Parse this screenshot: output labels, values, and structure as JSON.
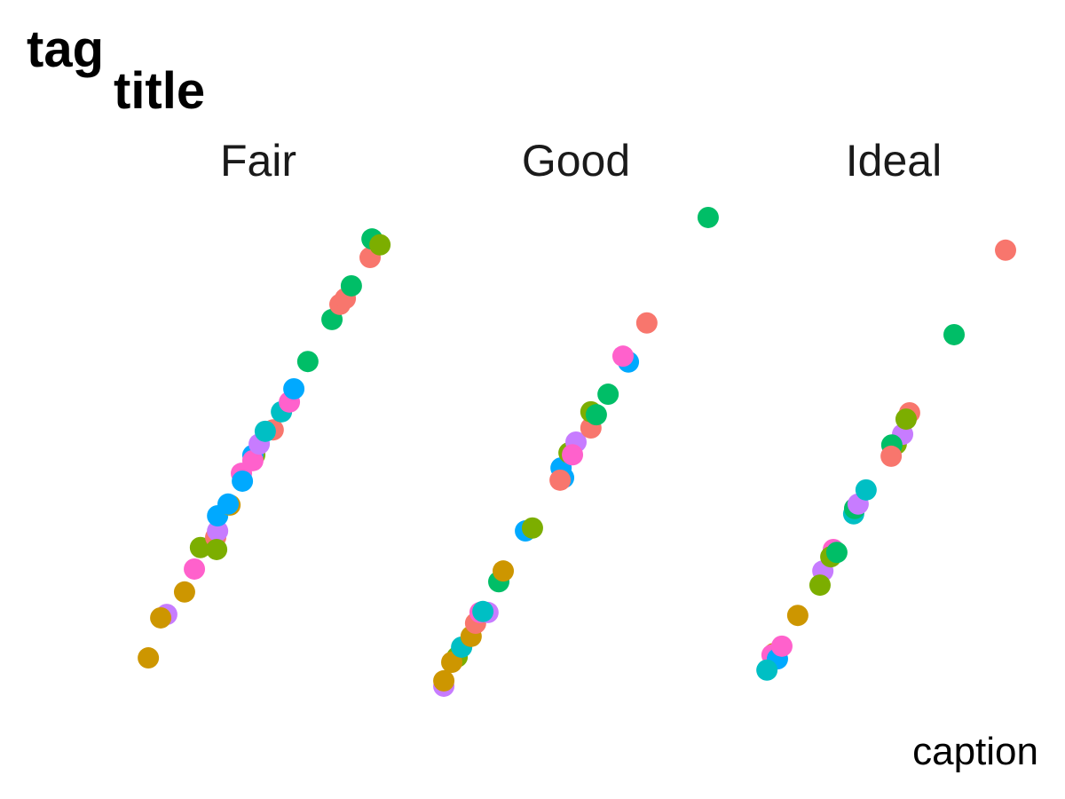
{
  "tag": "tag",
  "title": "title",
  "caption": "caption",
  "chart_data": {
    "type": "scatter",
    "title": "title",
    "tag": "tag",
    "caption": "caption",
    "xlabel": "",
    "ylabel": "",
    "axes_visible": false,
    "grid": false,
    "legend": "none",
    "xlim": [
      0,
      100
    ],
    "ylim": [
      0,
      100
    ],
    "palette": [
      "#F8766D",
      "#CD9600",
      "#7CAE00",
      "#00BE67",
      "#00BFC4",
      "#00A9FF",
      "#C77CFF",
      "#FF61CC"
    ],
    "facets": [
      {
        "label": "Fair",
        "points": [
          [
            15.4,
            8.9,
            1
          ],
          [
            21.2,
            17.8,
            6
          ],
          [
            19.3,
            17.1,
            1
          ],
          [
            26.8,
            22.4,
            1
          ],
          [
            29.9,
            27.1,
            7
          ],
          [
            31.8,
            31.5,
            2
          ],
          [
            36.6,
            33.6,
            0
          ],
          [
            37.2,
            34.9,
            6
          ],
          [
            36.9,
            31.1,
            2
          ],
          [
            37.2,
            38.0,
            5
          ],
          [
            41.1,
            40.2,
            1
          ],
          [
            40.5,
            40.4,
            5
          ],
          [
            44.7,
            46.7,
            7
          ],
          [
            45.0,
            45.1,
            5
          ],
          [
            48.9,
            50.5,
            2
          ],
          [
            48.3,
            50.4,
            5
          ],
          [
            48.3,
            49.3,
            7
          ],
          [
            50.3,
            52.7,
            6
          ],
          [
            54.7,
            55.6,
            0
          ],
          [
            52.2,
            55.3,
            4
          ],
          [
            57.3,
            59.3,
            4
          ],
          [
            59.8,
            61.3,
            7
          ],
          [
            61.2,
            64.0,
            5
          ],
          [
            65.6,
            69.6,
            3
          ],
          [
            73.2,
            78.2,
            3
          ],
          [
            75.7,
            81.3,
            0
          ],
          [
            77.4,
            82.5,
            0
          ],
          [
            79.3,
            85.1,
            3
          ],
          [
            85.2,
            90.9,
            0
          ],
          [
            85.8,
            94.7,
            3
          ],
          [
            88.3,
            93.5,
            2
          ]
        ]
      },
      {
        "label": "Good",
        "points": [
          [
            8.4,
            3.1,
            6
          ],
          [
            8.4,
            4.2,
            1
          ],
          [
            12.6,
            9.1,
            2
          ],
          [
            10.9,
            8.0,
            1
          ],
          [
            14.0,
            11.1,
            4
          ],
          [
            17.0,
            13.3,
            1
          ],
          [
            18.4,
            16.0,
            0
          ],
          [
            22.3,
            18.2,
            6
          ],
          [
            19.8,
            18.2,
            7
          ],
          [
            20.7,
            18.4,
            4
          ],
          [
            25.7,
            24.5,
            3
          ],
          [
            27.1,
            26.7,
            1
          ],
          [
            34.1,
            34.9,
            5
          ],
          [
            36.3,
            35.5,
            2
          ],
          [
            45.3,
            47.8,
            5
          ],
          [
            46.1,
            45.8,
            5
          ],
          [
            45.0,
            45.3,
            0
          ],
          [
            47.8,
            50.9,
            2
          ],
          [
            50.0,
            53.1,
            6
          ],
          [
            48.9,
            50.5,
            7
          ],
          [
            54.7,
            56.0,
            0
          ],
          [
            54.7,
            59.3,
            2
          ],
          [
            56.4,
            58.7,
            3
          ],
          [
            60.1,
            62.9,
            3
          ],
          [
            66.5,
            69.5,
            5
          ],
          [
            64.8,
            70.7,
            7
          ],
          [
            72.3,
            77.5,
            0
          ],
          [
            91.6,
            99.1,
            3
          ]
        ]
      },
      {
        "label": "Ideal",
        "points": [
          [
            12.3,
            9.8,
            1
          ],
          [
            11.7,
            9.5,
            7
          ],
          [
            13.4,
            8.7,
            5
          ],
          [
            10.1,
            6.4,
            4
          ],
          [
            14.8,
            11.3,
            7
          ],
          [
            19.8,
            17.6,
            1
          ],
          [
            27.7,
            26.7,
            6
          ],
          [
            26.8,
            23.8,
            2
          ],
          [
            31.0,
            31.1,
            7
          ],
          [
            30.2,
            29.6,
            2
          ],
          [
            32.1,
            30.5,
            3
          ],
          [
            37.4,
            38.4,
            4
          ],
          [
            37.7,
            39.5,
            3
          ],
          [
            38.8,
            40.4,
            6
          ],
          [
            41.3,
            43.3,
            4
          ],
          [
            50.8,
            52.7,
            2
          ],
          [
            52.8,
            54.7,
            6
          ],
          [
            49.4,
            52.5,
            3
          ],
          [
            49.2,
            50.2,
            0
          ],
          [
            55.0,
            59.1,
            0
          ],
          [
            53.9,
            57.8,
            2
          ],
          [
            69.0,
            75.1,
            3
          ],
          [
            85.2,
            92.4,
            0
          ]
        ]
      }
    ]
  }
}
